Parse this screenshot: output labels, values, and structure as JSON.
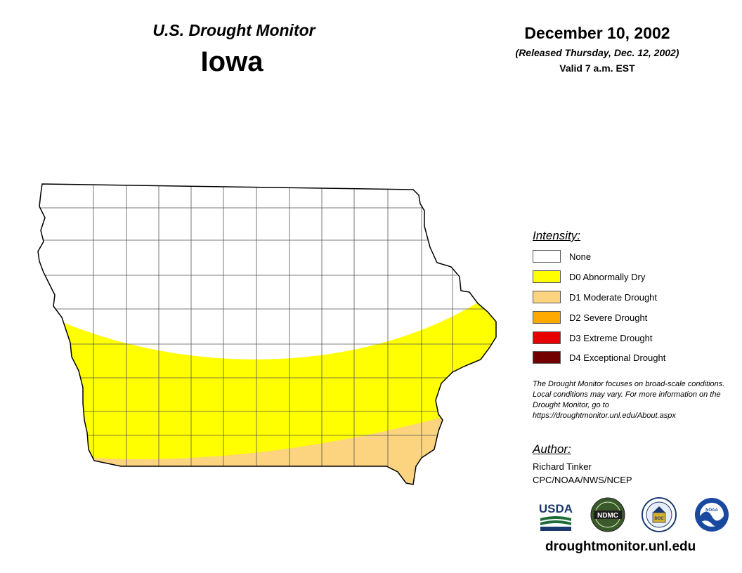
{
  "header": {
    "product": "U.S. Drought Monitor",
    "state": "Iowa",
    "date": "December 10, 2002",
    "released": "(Released Thursday, Dec. 12, 2002)",
    "valid": "Valid 7 a.m. EST"
  },
  "legend": {
    "title": "Intensity:",
    "items": [
      {
        "label": "None",
        "color": "#ffffff"
      },
      {
        "label": "D0 Abnormally Dry",
        "color": "#ffff00"
      },
      {
        "label": "D1 Moderate Drought",
        "color": "#fcd37f"
      },
      {
        "label": "D2 Severe Drought",
        "color": "#ffaa00"
      },
      {
        "label": "D3 Extreme Drought",
        "color": "#e60000"
      },
      {
        "label": "D4 Exceptional Drought",
        "color": "#730000"
      }
    ]
  },
  "map": {
    "region": "Iowa counties",
    "areas": [
      {
        "category": "None",
        "extent": "northern Iowa"
      },
      {
        "category": "D0 Abnormally Dry",
        "extent": "southern and eastern Iowa"
      },
      {
        "category": "D1 Moderate Drought",
        "extent": "southern border and southeast corner"
      }
    ]
  },
  "disclaimer": "The Drought Monitor focuses on broad-scale conditions. Local conditions may vary. For more information on the Drought Monitor, go to https://droughtmonitor.unl.edu/About.aspx",
  "author": {
    "title": "Author:",
    "name": "Richard Tinker",
    "org": "CPC/NOAA/NWS/NCEP"
  },
  "logos": {
    "usda": "USDA",
    "ndmc": "NDMC",
    "doc": "DOC",
    "noaa": "NOAA"
  },
  "footer": {
    "url": "droughtmonitor.unl.edu"
  }
}
